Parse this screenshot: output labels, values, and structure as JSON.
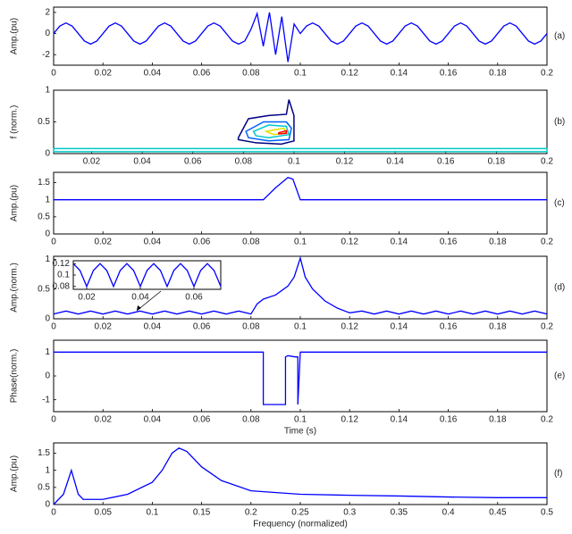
{
  "chart_data": [
    {
      "type": "line",
      "label": "(a)",
      "ylabel": "Amp.(pu)",
      "color": "#0000ff",
      "xlim": [
        0,
        0.2
      ],
      "xticks": [
        0,
        0.02,
        0.04,
        0.06,
        0.08,
        0.1,
        0.12,
        0.14,
        0.16,
        0.18,
        0.2
      ],
      "ylim": [
        -3,
        2.5
      ],
      "yticks": [
        -2,
        0,
        2
      ],
      "x": [
        0,
        0.0025,
        0.005,
        0.0075,
        0.01,
        0.0125,
        0.015,
        0.0175,
        0.02,
        0.0225,
        0.025,
        0.0275,
        0.03,
        0.0325,
        0.035,
        0.0375,
        0.04,
        0.0425,
        0.045,
        0.0475,
        0.05,
        0.0525,
        0.055,
        0.0575,
        0.06,
        0.0625,
        0.065,
        0.0675,
        0.07,
        0.0725,
        0.075,
        0.0775,
        0.08,
        0.0825,
        0.085,
        0.0875,
        0.09,
        0.0925,
        0.095,
        0.0975,
        0.1,
        0.1025,
        0.105,
        0.1075,
        0.11,
        0.1125,
        0.115,
        0.1175,
        0.12,
        0.1225,
        0.125,
        0.1275,
        0.13,
        0.1325,
        0.135,
        0.1375,
        0.14,
        0.1425,
        0.145,
        0.1475,
        0.15,
        0.1525,
        0.155,
        0.1575,
        0.16,
        0.1625,
        0.165,
        0.1675,
        0.17,
        0.1725,
        0.175,
        0.1775,
        0.18,
        0.1825,
        0.185,
        0.1875,
        0.19,
        0.1925,
        0.195,
        0.1975,
        0.2
      ],
      "values": [
        0,
        0.71,
        1,
        0.71,
        0,
        -0.71,
        -1,
        -0.71,
        0,
        0.71,
        1,
        0.71,
        0,
        -0.71,
        -1,
        -0.71,
        0,
        0.71,
        1,
        0.71,
        0,
        -0.71,
        -1,
        -0.71,
        0,
        0.71,
        1,
        0.71,
        0,
        -0.71,
        -1,
        -0.71,
        0.4,
        1.9,
        -1.2,
        2.0,
        -2.0,
        1.6,
        -2.7,
        0.9,
        0,
        0.71,
        1,
        0.71,
        0,
        -0.71,
        -1,
        -0.71,
        0,
        0.71,
        1,
        0.71,
        0,
        -0.71,
        -1,
        -0.71,
        0,
        0.71,
        1,
        0.71,
        0,
        -0.71,
        -1,
        -0.71,
        0,
        0.71,
        1,
        0.71,
        0,
        -0.71,
        -1,
        -0.71,
        0,
        0.71,
        1,
        0.71,
        0,
        -0.71,
        -1,
        -0.71,
        0
      ]
    },
    {
      "type": "contour",
      "label": "(b)",
      "ylabel": "f (norm.)",
      "xlim": [
        0.005,
        0.2
      ],
      "xticks": [
        0.02,
        0.04,
        0.06,
        0.08,
        0.1,
        0.12,
        0.14,
        0.16,
        0.18,
        0.2
      ],
      "ylim": [
        0,
        1
      ],
      "yticks": [
        0,
        0.5,
        1
      ],
      "contours": [
        {
          "color": "#00c8c8",
          "x": [
            0.005,
            0.2,
            0.2,
            0.005
          ],
          "y": [
            0.03,
            0.03,
            0.08,
            0.08
          ]
        },
        {
          "color": "#000080",
          "x": [
            0.078,
            0.082,
            0.09,
            0.097,
            0.098,
            0.1,
            0.1,
            0.095,
            0.085,
            0.078
          ],
          "y": [
            0.25,
            0.55,
            0.6,
            0.62,
            0.85,
            0.6,
            0.2,
            0.15,
            0.17,
            0.22
          ]
        },
        {
          "color": "#0060ff",
          "x": [
            0.081,
            0.088,
            0.097,
            0.099,
            0.098,
            0.09,
            0.082
          ],
          "y": [
            0.35,
            0.5,
            0.5,
            0.4,
            0.22,
            0.2,
            0.25
          ]
        },
        {
          "color": "#00c8c8",
          "x": [
            0.084,
            0.09,
            0.097,
            0.098,
            0.09,
            0.085
          ],
          "y": [
            0.35,
            0.45,
            0.43,
            0.3,
            0.25,
            0.28
          ]
        },
        {
          "color": "#e0e000",
          "x": [
            0.089,
            0.096,
            0.097,
            0.092
          ],
          "y": [
            0.35,
            0.4,
            0.33,
            0.3
          ]
        },
        {
          "color": "#ff0000",
          "x": [
            0.094,
            0.097,
            0.097,
            0.094
          ],
          "y": [
            0.33,
            0.36,
            0.32,
            0.31
          ]
        }
      ]
    },
    {
      "type": "line",
      "label": "(c)",
      "ylabel": "Amp.(pu)",
      "color": "#0000ff",
      "xlim": [
        0,
        0.2
      ],
      "xticks": [
        0,
        0.02,
        0.04,
        0.06,
        0.08,
        0.1,
        0.12,
        0.14,
        0.16,
        0.18,
        0.2
      ],
      "ylim": [
        0,
        1.8
      ],
      "yticks": [
        0,
        0.5,
        1,
        1.5
      ],
      "x": [
        0,
        0.085,
        0.09,
        0.095,
        0.097,
        0.1,
        0.2
      ],
      "values": [
        1,
        1,
        1.35,
        1.65,
        1.6,
        1,
        1
      ]
    },
    {
      "type": "line",
      "label": "(d)",
      "ylabel": "Amp.(norm.)",
      "color": "#0000ff",
      "xlim": [
        0,
        0.2
      ],
      "xticks": [
        0,
        0.02,
        0.04,
        0.06,
        0.08,
        0.1,
        0.12,
        0.14,
        0.16,
        0.18,
        0.2
      ],
      "ylim": [
        0,
        1.05
      ],
      "yticks": [
        0,
        0.5,
        1
      ],
      "x": [
        0,
        0.005,
        0.01,
        0.015,
        0.02,
        0.025,
        0.03,
        0.035,
        0.04,
        0.045,
        0.05,
        0.055,
        0.06,
        0.065,
        0.07,
        0.075,
        0.08,
        0.0825,
        0.085,
        0.09,
        0.095,
        0.0975,
        0.1,
        0.102,
        0.105,
        0.11,
        0.115,
        0.12,
        0.125,
        0.13,
        0.135,
        0.14,
        0.145,
        0.15,
        0.155,
        0.16,
        0.165,
        0.17,
        0.175,
        0.18,
        0.185,
        0.19,
        0.195,
        0.2
      ],
      "values": [
        0.08,
        0.13,
        0.08,
        0.13,
        0.08,
        0.13,
        0.08,
        0.13,
        0.08,
        0.13,
        0.08,
        0.13,
        0.08,
        0.13,
        0.08,
        0.13,
        0.08,
        0.25,
        0.33,
        0.4,
        0.55,
        0.7,
        1.02,
        0.7,
        0.5,
        0.3,
        0.18,
        0.1,
        0.13,
        0.08,
        0.13,
        0.08,
        0.13,
        0.08,
        0.13,
        0.08,
        0.13,
        0.08,
        0.13,
        0.08,
        0.13,
        0.08,
        0.13,
        0.08
      ],
      "inset": {
        "xlim": [
          0.015,
          0.07
        ],
        "xticks": [
          0.02,
          0.04,
          0.06
        ],
        "ylim": [
          0.075,
          0.125
        ],
        "yticks": [
          0.08,
          0.1,
          0.12
        ],
        "x": [
          0.015,
          0.0175,
          0.02,
          0.0225,
          0.025,
          0.0275,
          0.03,
          0.0325,
          0.035,
          0.0375,
          0.04,
          0.0425,
          0.045,
          0.0475,
          0.05,
          0.0525,
          0.055,
          0.0575,
          0.06,
          0.0625,
          0.065,
          0.0675,
          0.07
        ],
        "values": [
          0.12,
          0.108,
          0.08,
          0.108,
          0.12,
          0.108,
          0.08,
          0.108,
          0.12,
          0.108,
          0.08,
          0.108,
          0.12,
          0.108,
          0.08,
          0.108,
          0.12,
          0.108,
          0.08,
          0.108,
          0.12,
          0.108,
          0.08
        ]
      }
    },
    {
      "type": "line",
      "label": "(e)",
      "ylabel": "Phase(norm.)",
      "xlabel": "Time (s)",
      "color": "#0000ff",
      "xlim": [
        0,
        0.2
      ],
      "xticks": [
        0,
        0.02,
        0.04,
        0.06,
        0.08,
        0.1,
        0.12,
        0.14,
        0.16,
        0.18,
        0.2
      ],
      "ylim": [
        -1.5,
        1.5
      ],
      "yticks": [
        -1,
        0,
        1
      ],
      "x": [
        0,
        0.085,
        0.085,
        0.094,
        0.094,
        0.095,
        0.098,
        0.099,
        0.099,
        0.1,
        0.2
      ],
      "values": [
        1,
        1,
        -1.2,
        -1.2,
        0.8,
        0.85,
        0.8,
        0.8,
        -1.2,
        1,
        1
      ]
    },
    {
      "type": "line",
      "label": "(f)",
      "ylabel": "Amp.(pu)",
      "xlabel": "Frequency (normalized)",
      "color": "#0000ff",
      "xlim": [
        0,
        0.5
      ],
      "xticks": [
        0,
        0.05,
        0.1,
        0.15,
        0.2,
        0.25,
        0.3,
        0.35,
        0.4,
        0.45,
        0.5
      ],
      "ylim": [
        0,
        1.8
      ],
      "yticks": [
        0,
        0.5,
        1,
        1.5
      ],
      "x": [
        0,
        0.01,
        0.018,
        0.025,
        0.03,
        0.05,
        0.075,
        0.1,
        0.11,
        0.12,
        0.127,
        0.135,
        0.15,
        0.17,
        0.2,
        0.25,
        0.3,
        0.35,
        0.4,
        0.45,
        0.5
      ],
      "values": [
        0,
        0.3,
        1.0,
        0.3,
        0.15,
        0.15,
        0.3,
        0.65,
        1.0,
        1.5,
        1.65,
        1.55,
        1.1,
        0.7,
        0.4,
        0.3,
        0.27,
        0.25,
        0.22,
        0.2,
        0.2
      ]
    }
  ]
}
